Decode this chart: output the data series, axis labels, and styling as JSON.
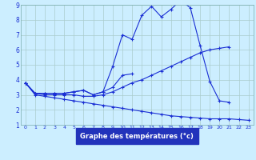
{
  "title": "Graphe des températures (°c)",
  "background_color": "#cceeff",
  "grid_color": "#aacccc",
  "line_color": "#1a2fd4",
  "xlim": [
    -0.5,
    23.5
  ],
  "ylim": [
    1,
    9
  ],
  "yticks": [
    1,
    2,
    3,
    4,
    5,
    6,
    7,
    8,
    9
  ],
  "xticks": [
    0,
    1,
    2,
    3,
    4,
    5,
    6,
    7,
    8,
    9,
    10,
    11,
    12,
    13,
    14,
    15,
    16,
    17,
    18,
    19,
    20,
    21,
    22,
    23
  ],
  "series": {
    "line1": [
      3.8,
      3.1,
      3.1,
      3.1,
      3.1,
      3.2,
      3.3,
      3.0,
      3.2,
      4.9,
      7.0,
      6.7,
      8.3,
      8.9,
      8.2,
      8.7,
      9.3,
      8.8,
      6.3,
      3.9,
      2.6,
      2.5,
      null,
      null
    ],
    "line2": [
      3.8,
      3.1,
      3.1,
      3.1,
      3.1,
      3.2,
      3.3,
      3.0,
      3.2,
      3.5,
      4.3,
      4.4,
      null,
      null,
      null,
      null,
      null,
      null,
      null,
      null,
      null,
      null,
      null,
      null
    ],
    "line3": [
      3.8,
      3.1,
      3.0,
      3.0,
      3.0,
      3.0,
      2.9,
      2.9,
      3.0,
      3.2,
      3.5,
      3.8,
      4.0,
      4.3,
      4.6,
      4.9,
      5.2,
      5.5,
      5.8,
      6.0,
      6.1,
      6.2,
      null,
      null
    ],
    "line4": [
      3.8,
      3.0,
      2.9,
      2.8,
      2.7,
      2.6,
      2.5,
      2.4,
      2.3,
      2.2,
      2.1,
      2.0,
      1.9,
      1.8,
      1.7,
      1.6,
      1.55,
      1.5,
      1.45,
      1.4,
      1.4,
      1.4,
      1.35,
      1.3
    ]
  }
}
